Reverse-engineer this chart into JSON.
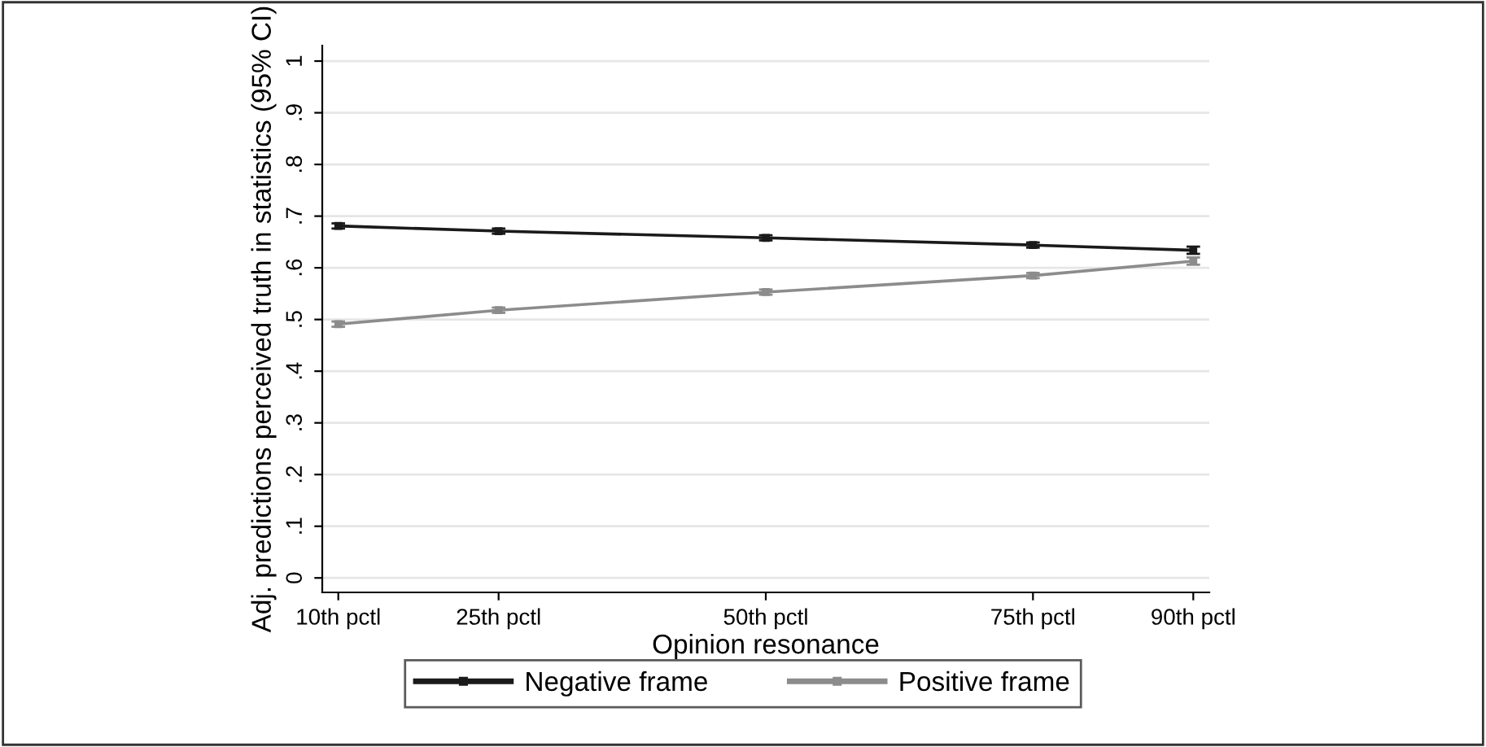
{
  "chart_data": {
    "type": "line",
    "xlabel": "Opinion resonance",
    "ylabel": "Adj. predictions perceived truth in statistics (95% CI)",
    "x": [
      10,
      25,
      50,
      75,
      90
    ],
    "series": [
      {
        "name": "Negative frame",
        "color": "#1a1a1a",
        "values": [
          0.681,
          0.671,
          0.658,
          0.644,
          0.634
        ],
        "errors": [
          0.005,
          0.005,
          0.005,
          0.005,
          0.007
        ]
      },
      {
        "name": "Positive frame",
        "color": "#8c8c8c",
        "values": [
          0.491,
          0.518,
          0.553,
          0.585,
          0.613
        ],
        "errors": [
          0.005,
          0.005,
          0.005,
          0.005,
          0.007
        ]
      }
    ],
    "xlim": [
      8.5,
      91.5
    ],
    "ylim": [
      -0.028,
      1.03
    ],
    "xticks": [
      {
        "value": 10,
        "label": "10th pctl"
      },
      {
        "value": 25,
        "label": "25th pctl"
      },
      {
        "value": 50,
        "label": "50th pctl"
      },
      {
        "value": 75,
        "label": "75th pctl"
      },
      {
        "value": 90,
        "label": "90th pctl"
      }
    ],
    "yticks": [
      {
        "value": 0,
        "label": "0"
      },
      {
        "value": 0.1,
        "label": ".1"
      },
      {
        "value": 0.2,
        "label": ".2"
      },
      {
        "value": 0.3,
        "label": ".3"
      },
      {
        "value": 0.4,
        "label": ".4"
      },
      {
        "value": 0.5,
        "label": ".5"
      },
      {
        "value": 0.6,
        "label": ".6"
      },
      {
        "value": 0.7,
        "label": ".7"
      },
      {
        "value": 0.8,
        "label": ".8"
      },
      {
        "value": 0.9,
        "label": ".9"
      },
      {
        "value": 1,
        "label": "1"
      }
    ],
    "grid": "y",
    "legend": "bottom",
    "marker": "square",
    "line_style": "solid"
  }
}
